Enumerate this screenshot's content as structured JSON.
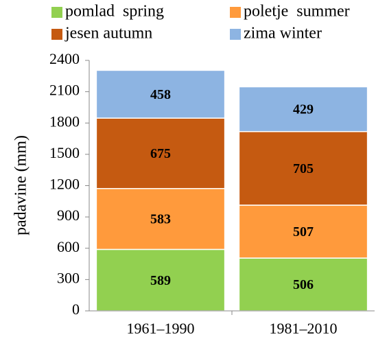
{
  "chart_data": {
    "type": "stacked_bar",
    "y_label": "padavine (mm)",
    "categories": [
      "1961–1990",
      "1981–2010"
    ],
    "series": [
      {
        "name": "pomlad  spring",
        "color": "#92d050",
        "values": [
          589,
          506
        ]
      },
      {
        "name": "poletje  summer",
        "color": "#ff9a3c",
        "values": [
          583,
          507
        ]
      },
      {
        "name": "jesen autumn",
        "color": "#c55a11",
        "values": [
          675,
          705
        ]
      },
      {
        "name": "zima winter",
        "color": "#8db4e2",
        "values": [
          458,
          429
        ]
      }
    ],
    "ylim": [
      0,
      2400
    ],
    "yticks": [
      0,
      300,
      600,
      900,
      1200,
      1500,
      1800,
      2100,
      2400
    ],
    "grid": false
  }
}
